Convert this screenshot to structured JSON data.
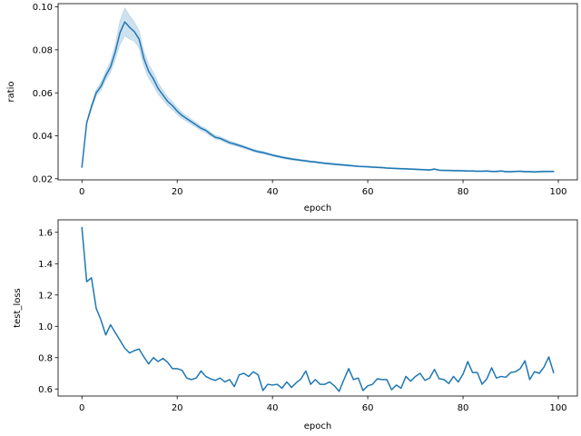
{
  "chart_data": [
    {
      "type": "line",
      "xlabel": "epoch",
      "ylabel": "ratio",
      "xlim": [
        -5,
        104
      ],
      "ylim": [
        0.0195,
        0.1015
      ],
      "xticks": [
        0,
        20,
        40,
        60,
        80,
        100
      ],
      "xtick_labels": [
        "0",
        "20",
        "40",
        "60",
        "80",
        "100"
      ],
      "yticks": [
        0.02,
        0.04,
        0.06,
        0.08,
        0.1
      ],
      "ytick_labels": [
        "0.02",
        "0.04",
        "0.06",
        "0.08",
        "0.10"
      ],
      "grid": false,
      "colors": {
        "line": "#1f77b4",
        "band": "#1f77b4"
      },
      "series": [
        {
          "x": [
            0,
            1,
            2,
            3,
            4,
            5,
            6,
            7,
            8,
            9,
            10,
            11,
            12,
            13,
            14,
            15,
            16,
            17,
            18,
            19,
            20,
            21,
            22,
            23,
            24,
            25,
            26,
            27,
            28,
            29,
            30,
            31,
            32,
            33,
            34,
            35,
            36,
            37,
            38,
            39,
            40,
            41,
            42,
            43,
            44,
            45,
            46,
            47,
            48,
            49,
            50,
            51,
            52,
            53,
            54,
            55,
            56,
            57,
            58,
            59,
            60,
            61,
            62,
            63,
            64,
            65,
            66,
            67,
            68,
            69,
            70,
            71,
            72,
            73,
            74,
            75,
            76,
            77,
            78,
            79,
            80,
            81,
            82,
            83,
            84,
            85,
            86,
            87,
            88,
            89,
            90,
            91,
            92,
            93,
            94,
            95,
            96,
            97,
            98,
            99
          ],
          "y": [
            0.0255,
            0.046,
            0.0535,
            0.06,
            0.063,
            0.068,
            0.072,
            0.079,
            0.088,
            0.093,
            0.0905,
            0.0885,
            0.085,
            0.076,
            0.07,
            0.0665,
            0.062,
            0.059,
            0.056,
            0.054,
            0.0515,
            0.0495,
            0.048,
            0.0465,
            0.045,
            0.0435,
            0.0425,
            0.0408,
            0.0393,
            0.0388,
            0.0378,
            0.0368,
            0.0362,
            0.0355,
            0.0348,
            0.034,
            0.0332,
            0.0326,
            0.0322,
            0.0316,
            0.031,
            0.0305,
            0.03,
            0.0296,
            0.0292,
            0.0289,
            0.0286,
            0.0283,
            0.028,
            0.0278,
            0.0275,
            0.0272,
            0.027,
            0.0268,
            0.0266,
            0.0264,
            0.0262,
            0.026,
            0.0258,
            0.0257,
            0.0256,
            0.0254,
            0.0253,
            0.0252,
            0.025,
            0.0249,
            0.0248,
            0.0247,
            0.0246,
            0.0245,
            0.0244,
            0.0243,
            0.0242,
            0.0241,
            0.0245,
            0.024,
            0.0239,
            0.0239,
            0.0238,
            0.0238,
            0.0237,
            0.0236,
            0.0236,
            0.0235,
            0.0235,
            0.0236,
            0.0234,
            0.0234,
            0.0236,
            0.0233,
            0.0233,
            0.0234,
            0.0235,
            0.0233,
            0.0233,
            0.0232,
            0.0233,
            0.0234,
            0.0234,
            0.0234
          ],
          "ci": [
            0.0002,
            0.0008,
            0.0012,
            0.0015,
            0.0018,
            0.002,
            0.0025,
            0.0035,
            0.0055,
            0.0065,
            0.0055,
            0.0045,
            0.004,
            0.0035,
            0.0032,
            0.003,
            0.0026,
            0.0022,
            0.002,
            0.0018,
            0.0016,
            0.0014,
            0.0013,
            0.0012,
            0.0011,
            0.001,
            0.001,
            0.0009,
            0.0009,
            0.0008,
            0.0008,
            0.0008,
            0.0007,
            0.0007,
            0.0007,
            0.0006,
            0.0006,
            0.0006,
            0.0006,
            0.0005,
            0.0005,
            0.0005,
            0.0005,
            0.0005,
            0.0005,
            0.0004,
            0.0004,
            0.0004,
            0.0004,
            0.0004,
            0.0004,
            0.0004,
            0.0004,
            0.0004,
            0.0004,
            0.0004,
            0.0004,
            0.0003,
            0.0003,
            0.0003,
            0.0003,
            0.0003,
            0.0003,
            0.0003,
            0.0003,
            0.0003,
            0.0003,
            0.0003,
            0.0003,
            0.0003,
            0.0003,
            0.0003,
            0.0003,
            0.0003,
            0.0003,
            0.0003,
            0.0003,
            0.0003,
            0.0003,
            0.0003,
            0.0003,
            0.0003,
            0.0003,
            0.0003,
            0.0003,
            0.0003,
            0.0003,
            0.0003,
            0.0003,
            0.0003,
            0.0003,
            0.0003,
            0.0003,
            0.0003,
            0.0003,
            0.0003,
            0.0003,
            0.0003,
            0.0003,
            0.0003
          ]
        }
      ]
    },
    {
      "type": "line",
      "xlabel": "epoch",
      "ylabel": "test_loss",
      "xlim": [
        -5,
        104
      ],
      "ylim": [
        0.555,
        1.68
      ],
      "xticks": [
        0,
        20,
        40,
        60,
        80,
        100
      ],
      "xtick_labels": [
        "0",
        "20",
        "40",
        "60",
        "80",
        "100"
      ],
      "yticks": [
        0.6,
        0.8,
        1.0,
        1.2,
        1.4,
        1.6
      ],
      "ytick_labels": [
        "0.6",
        "0.8",
        "1.0",
        "1.2",
        "1.4",
        "1.6"
      ],
      "grid": false,
      "colors": {
        "line": "#1f77b4"
      },
      "series": [
        {
          "x": [
            0,
            1,
            2,
            3,
            4,
            5,
            6,
            7,
            8,
            9,
            10,
            11,
            12,
            13,
            14,
            15,
            16,
            17,
            18,
            19,
            20,
            21,
            22,
            23,
            24,
            25,
            26,
            27,
            28,
            29,
            30,
            31,
            32,
            33,
            34,
            35,
            36,
            37,
            38,
            39,
            40,
            41,
            42,
            43,
            44,
            45,
            46,
            47,
            48,
            49,
            50,
            51,
            52,
            53,
            54,
            55,
            56,
            57,
            58,
            59,
            60,
            61,
            62,
            63,
            64,
            65,
            66,
            67,
            68,
            69,
            70,
            71,
            72,
            73,
            74,
            75,
            76,
            77,
            78,
            79,
            80,
            81,
            82,
            83,
            84,
            85,
            86,
            87,
            88,
            89,
            90,
            91,
            92,
            93,
            94,
            95,
            96,
            97,
            98,
            99
          ],
          "y": [
            1.63,
            1.285,
            1.31,
            1.115,
            1.04,
            0.945,
            1.01,
            0.96,
            0.91,
            0.86,
            0.83,
            0.845,
            0.855,
            0.805,
            0.76,
            0.8,
            0.775,
            0.795,
            0.77,
            0.73,
            0.73,
            0.72,
            0.67,
            0.66,
            0.67,
            0.715,
            0.68,
            0.665,
            0.655,
            0.67,
            0.645,
            0.66,
            0.615,
            0.69,
            0.7,
            0.68,
            0.71,
            0.69,
            0.59,
            0.63,
            0.625,
            0.63,
            0.605,
            0.645,
            0.61,
            0.64,
            0.665,
            0.715,
            0.63,
            0.66,
            0.63,
            0.63,
            0.645,
            0.62,
            0.585,
            0.66,
            0.73,
            0.66,
            0.67,
            0.59,
            0.62,
            0.63,
            0.665,
            0.66,
            0.66,
            0.595,
            0.625,
            0.605,
            0.68,
            0.65,
            0.68,
            0.7,
            0.655,
            0.67,
            0.725,
            0.665,
            0.66,
            0.635,
            0.68,
            0.645,
            0.695,
            0.775,
            0.705,
            0.705,
            0.63,
            0.665,
            0.735,
            0.67,
            0.68,
            0.675,
            0.705,
            0.71,
            0.73,
            0.78,
            0.66,
            0.71,
            0.7,
            0.74,
            0.805,
            0.705
          ]
        }
      ]
    }
  ]
}
